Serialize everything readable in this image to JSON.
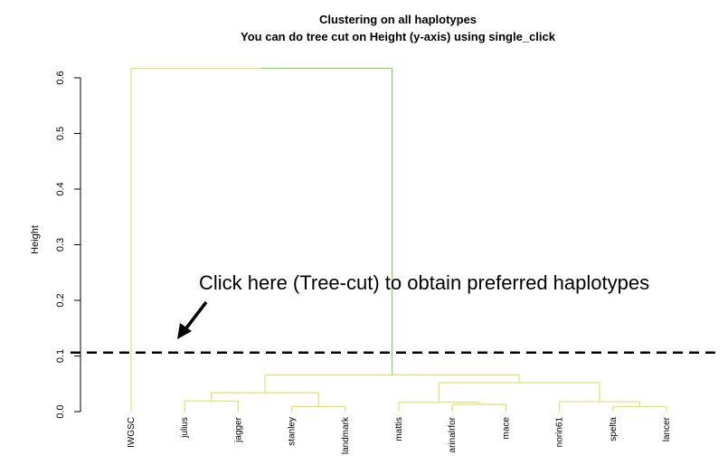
{
  "chart_data": {
    "type": "dendrogram",
    "title": "Clustering on all haplotypes",
    "subtitle": "You can do tree cut on Height (y-axis) using single_click",
    "ylabel": "Height",
    "ylim": [
      0,
      0.6
    ],
    "yticks": [
      "0.0",
      "0.1",
      "0.2",
      "0.3",
      "0.4",
      "0.5",
      "0.6"
    ],
    "ytick_values": [
      0,
      0.1,
      0.2,
      0.3,
      0.4,
      0.5,
      0.6
    ],
    "leaves": [
      "IWGSC",
      "julius",
      "jagger",
      "stanley",
      "landmark",
      "mattis",
      "arinalrfor",
      "mace",
      "norin61",
      "spelta",
      "lancer"
    ],
    "merges": [
      {
        "left": "julius",
        "right": "jagger",
        "height": 0.019
      },
      {
        "left": "stanley",
        "right": "landmark",
        "height": 0.009
      },
      {
        "left": "julius+jagger",
        "right": "stanley+landmark",
        "height": 0.034
      },
      {
        "left": "arinalrfor",
        "right": "mace",
        "height": 0.013
      },
      {
        "left": "mattis",
        "right": "arinalrfor+mace",
        "height": 0.017
      },
      {
        "left": "spelta",
        "right": "lancer",
        "height": 0.009
      },
      {
        "left": "norin61",
        "right": "spelta+lancer",
        "height": 0.018
      },
      {
        "left": "mattis+arinalrfor+mace",
        "right": "norin61+spelta+lancer",
        "height": 0.052
      },
      {
        "left": "julius..landmark",
        "right": "mattis..lancer",
        "height": 0.066
      },
      {
        "left": "IWGSC",
        "right": "all others",
        "height": 0.617
      }
    ],
    "cut_height": 0.106,
    "annotation": "Click here (Tree-cut) to obtain preferred haplotypes",
    "colors": {
      "branch_light": "#dde26a",
      "branch_green": "#7ed957",
      "cut_line": "#000000"
    }
  }
}
